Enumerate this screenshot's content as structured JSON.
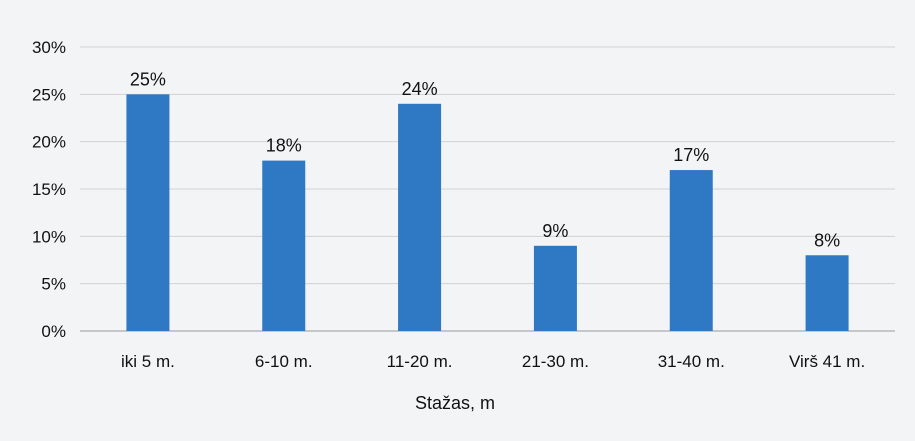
{
  "chart_data": {
    "type": "bar",
    "categories": [
      "iki 5 m.",
      "6-10 m.",
      "11-20 m.",
      "21-30 m.",
      "31-40 m.",
      "Virš 41 m."
    ],
    "values": [
      25,
      18,
      24,
      9,
      17,
      8
    ],
    "data_labels": [
      "25%",
      "18%",
      "24%",
      "9%",
      "17%",
      "8%"
    ],
    "xlabel": "Stažas, m",
    "ylabel": "",
    "ylim": [
      0,
      30
    ],
    "yticks": [
      0,
      5,
      10,
      15,
      20,
      25,
      30
    ],
    "ytick_labels": [
      "0%",
      "5%",
      "10%",
      "15%",
      "20%",
      "25%",
      "30%"
    ],
    "grid": true,
    "legend": "none",
    "bar_color": "#2e78c4"
  }
}
